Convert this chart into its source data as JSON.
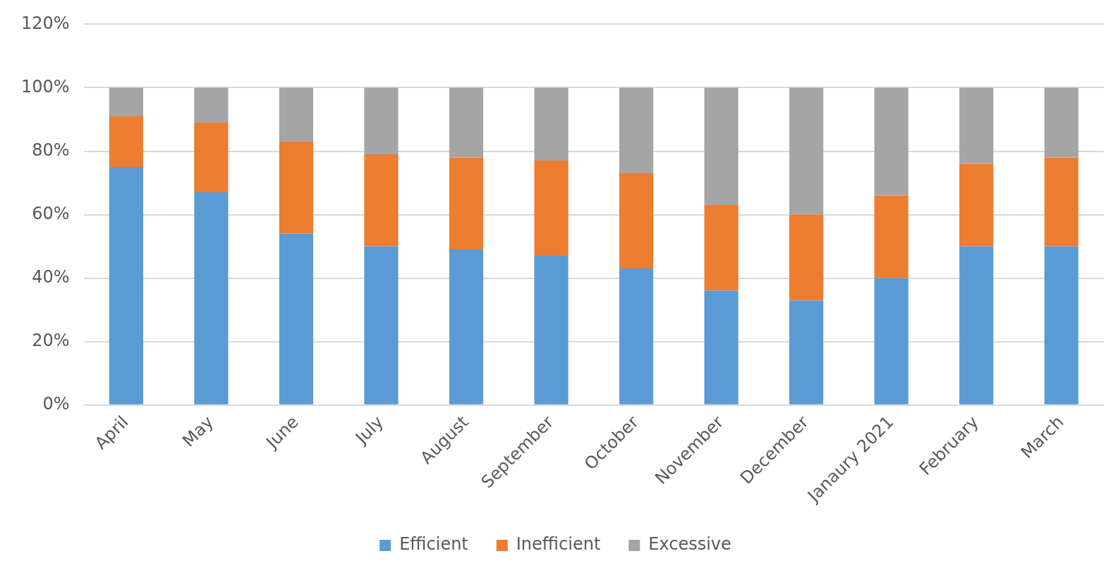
{
  "chart_data": {
    "type": "bar",
    "stacked": true,
    "categories": [
      "April",
      "May",
      "June",
      "July",
      "August",
      "September",
      "October",
      "November",
      "December",
      "Janaury 2021",
      "February",
      "March"
    ],
    "series": [
      {
        "name": "Efficient",
        "color": "#5b9bd5",
        "values": [
          75,
          67,
          54,
          50,
          49,
          47,
          43,
          36,
          33,
          40,
          50,
          50
        ]
      },
      {
        "name": "Inefficient",
        "color": "#ed7d31",
        "values": [
          16,
          22,
          29,
          29,
          29,
          30,
          30,
          27,
          27,
          26,
          26,
          28
        ]
      },
      {
        "name": "Excessive",
        "color": "#a5a5a5",
        "values": [
          9,
          11,
          17,
          21,
          22,
          23,
          27,
          37,
          40,
          34,
          24,
          22
        ]
      }
    ],
    "ylim": [
      0,
      120
    ],
    "yticks": [
      {
        "value": 0,
        "label": "0%"
      },
      {
        "value": 20,
        "label": "20%"
      },
      {
        "value": 40,
        "label": "40%"
      },
      {
        "value": 60,
        "label": "60%"
      },
      {
        "value": 80,
        "label": "80%"
      },
      {
        "value": 100,
        "label": "100%"
      },
      {
        "value": 120,
        "label": "120%"
      }
    ],
    "grid": "y",
    "legend": "bottom"
  }
}
